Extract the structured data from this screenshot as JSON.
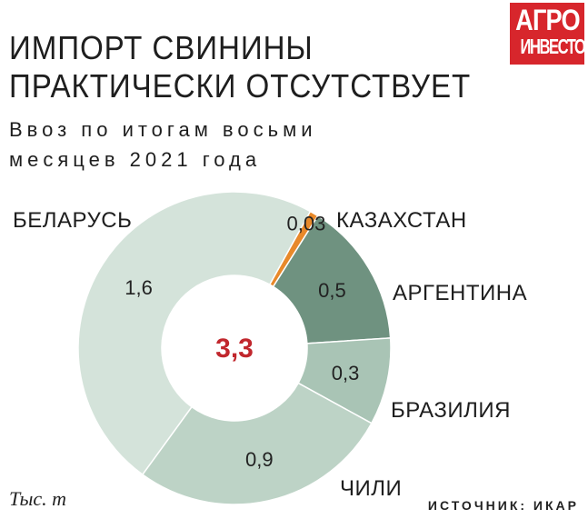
{
  "header": {
    "title_line1": "ИМПОРТ СВИНИНЫ",
    "title_line2": "ПРАКТИЧЕСКИ ОТСУТСТВУЕТ",
    "subtitle": "Ввоз по итогам восьми месяцев 2021 года"
  },
  "logo": {
    "line1": "АГРО",
    "line2": "ИНВЕСТОР",
    "color": "#d7262c"
  },
  "footer": {
    "unit": "Тыс. т",
    "source": "ИСТОЧНИК: ИКАР"
  },
  "chart_data": {
    "type": "pie",
    "title": "ИМПОРТ СВИНИНЫ ПРАКТИЧЕСКИ ОТСУТСТВУЕТ",
    "subtitle": "Ввоз по итогам восьми месяцев 2021 года",
    "unit": "Тыс. т",
    "total": 3.3,
    "total_label": "3,3",
    "slices": [
      {
        "name": "КАЗАХСТАН",
        "value": 0.03,
        "label": "0,03",
        "color": "#e8892a"
      },
      {
        "name": "АРГЕНТИНА",
        "value": 0.5,
        "label": "0,5",
        "color": "#6f9280"
      },
      {
        "name": "БРАЗИЛИЯ",
        "value": 0.3,
        "label": "0,3",
        "color": "#a9c4b5"
      },
      {
        "name": "ЧИЛИ",
        "value": 0.9,
        "label": "0,9",
        "color": "#bdd3c6"
      },
      {
        "name": "БЕЛАРУСЬ",
        "value": 1.6,
        "label": "1,6",
        "color": "#d4e3da"
      }
    ],
    "legend": "none"
  }
}
